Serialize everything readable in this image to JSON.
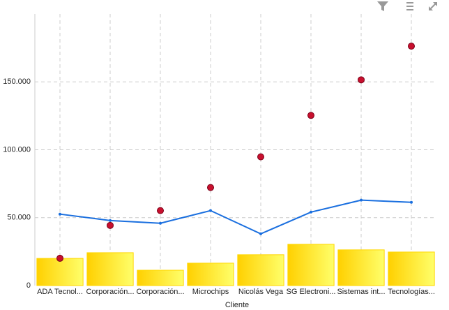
{
  "chart_data": {
    "type": "combo",
    "x_label": "Cliente",
    "categories": [
      "ADA Tecnol...",
      "Corporación...",
      "Corporación...",
      "Microchips",
      "Nicolás Vega",
      "SG Electroni...",
      "Sistemas int...",
      "Tecnologías..."
    ],
    "series": [
      {
        "type": "bar",
        "color": "#ffd700",
        "values": [
          20000,
          24200,
          11300,
          16500,
          22700,
          30400,
          26300,
          24700
        ]
      },
      {
        "type": "line",
        "color": "#1a6fdf",
        "values": [
          52600,
          47900,
          45900,
          55200,
          38100,
          54100,
          62900,
          61300
        ]
      },
      {
        "type": "scatter",
        "color": "#c8102e",
        "values": [
          20100,
          44300,
          55200,
          72200,
          94800,
          125300,
          151500,
          176300
        ]
      }
    ],
    "ylim": [
      0,
      200000
    ],
    "yticks": [
      0,
      {
        "value": 50000,
        "label": "50.000"
      },
      {
        "value": 100000,
        "label": "100.000"
      },
      {
        "value": 150000,
        "label": "150.000"
      }
    ],
    "grid": true
  }
}
